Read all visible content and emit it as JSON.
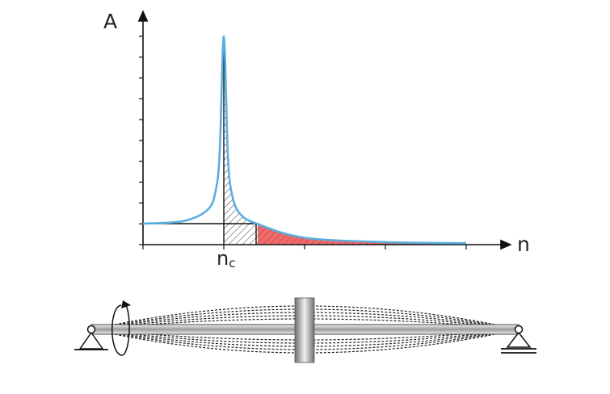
{
  "labels": {
    "y_axis": "A",
    "x_axis": "n",
    "critical_main": "n",
    "critical_sub": "c"
  },
  "colors": {
    "curve": "#5aaedf",
    "red_region": "#ef5a5a",
    "hatch": "#222222",
    "axis": "#111111"
  },
  "chart_data": {
    "type": "line",
    "title": "",
    "xlabel": "n",
    "ylabel": "A",
    "series": [
      {
        "x": [
          0.0,
          0.5,
          0.8,
          0.9,
          0.95,
          1.0,
          1.05,
          1.1,
          1.2,
          1.42,
          2.0,
          3.0,
          4.0
        ],
        "values": [
          1.0,
          1.33,
          2.78,
          5.26,
          10.3,
          25.0,
          9.8,
          4.8,
          2.27,
          0.98,
          0.33,
          0.12,
          0.07
        ]
      }
    ],
    "critical_n": 1.0,
    "shaded_regions": [
      {
        "style": "hatched",
        "from": 1.0,
        "to": 1.42
      },
      {
        "style": "red-hatched",
        "from": 1.42,
        "to": 4.0
      }
    ],
    "reference_line_y": 1.0,
    "icons": [
      "rotation-arrow-icon",
      "pin-support-icon",
      "roller-support-icon",
      "disk-icon"
    ]
  }
}
